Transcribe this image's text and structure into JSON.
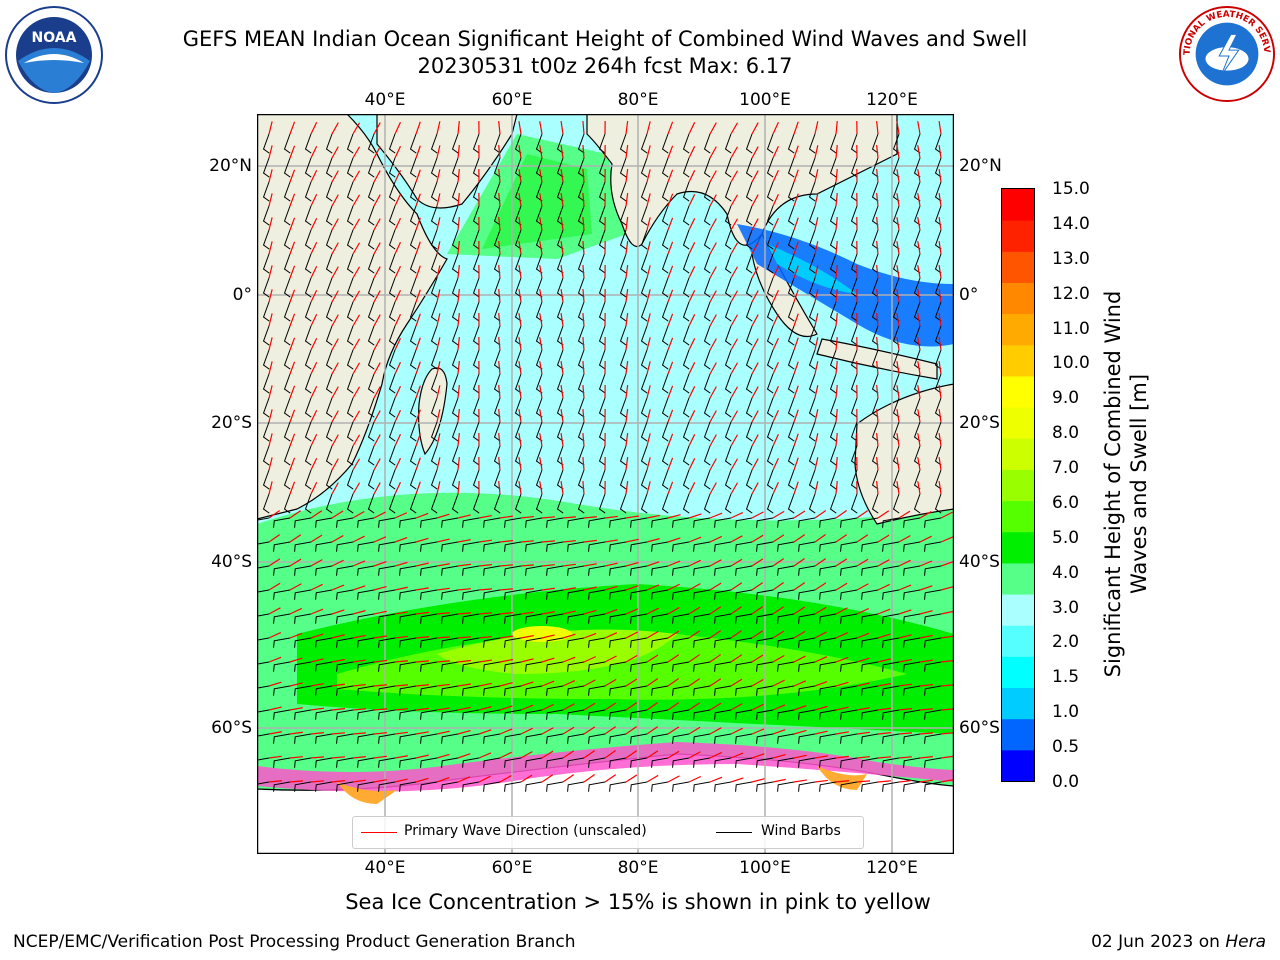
{
  "header": {
    "title_line1": "GEFS MEAN Indian Ocean Significant Height of Combined Wind Waves and Swell",
    "title_line2": "20230531 t00z 264h fcst   Max: 6.17"
  },
  "logos": {
    "left": "NOAA",
    "right": "NATIONAL WEATHER SERVICE"
  },
  "map": {
    "lon_labels": [
      "40°E",
      "60°E",
      "80°E",
      "100°E",
      "120°E"
    ],
    "lat_labels": [
      "20°N",
      "0°",
      "20°S",
      "40°S",
      "60°S"
    ],
    "legend": {
      "wave_label": "Primary Wave Direction (unscaled)",
      "barb_label": "Wind Barbs",
      "wave_color": "#ff0000",
      "barb_color": "#000000"
    }
  },
  "colorbar": {
    "label": "Significant Height of Combined Wind Waves and Swell [m]",
    "ticks": [
      "15.0",
      "14.0",
      "13.0",
      "12.0",
      "11.0",
      "10.0",
      "9.0",
      "8.0",
      "7.0",
      "6.0",
      "5.0",
      "4.0",
      "3.0",
      "2.0",
      "1.5",
      "1.0",
      "0.5",
      "0.0"
    ],
    "colors_bottom_to_top": [
      "#0000ff",
      "#0066ff",
      "#00ccff",
      "#00ffff",
      "#55ffff",
      "#aaffff",
      "#55ff88",
      "#00ee00",
      "#55ff00",
      "#99ff00",
      "#ccff00",
      "#eeff00",
      "#ffff00",
      "#ffcc00",
      "#ffaa00",
      "#ff8800",
      "#ff5500",
      "#ff2200",
      "#ff0000"
    ]
  },
  "footer": {
    "ice_note": "Sea Ice Concentration > 15% is shown in pink to yellow",
    "credit": "NCEP/EMC/Verification Post Processing Product Generation Branch",
    "date": "02 Jun 2023 on",
    "host": "Hera"
  }
}
